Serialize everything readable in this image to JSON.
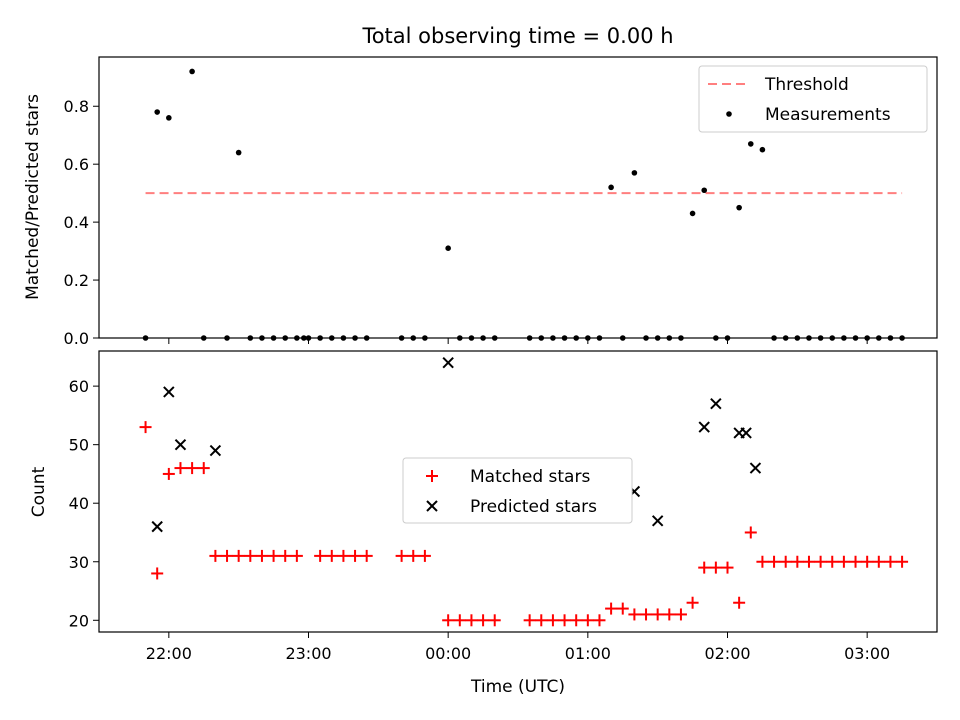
{
  "chart_data": [
    {
      "type": "scatter",
      "title": "Total observing time = 0.00 h",
      "ylabel": "Matched/Predicted stars",
      "ylim": [
        0,
        0.97
      ],
      "yticks": [
        "0.0",
        "0.2",
        "0.4",
        "0.6",
        "0.8"
      ],
      "threshold": {
        "name": "Threshold",
        "y": 0.5,
        "x_range": [
          "21:50",
          "03:15"
        ],
        "color": "#ff7f7f"
      },
      "legend_placement": "upper right",
      "series": [
        {
          "name": "Measurements",
          "color": "#000000",
          "x": [
            "21:50",
            "21:55",
            "22:00",
            "22:10",
            "22:15",
            "22:25",
            "22:30",
            "22:35",
            "22:40",
            "22:45",
            "22:50",
            "22:55",
            "22:58",
            "23:00",
            "23:05",
            "23:10",
            "23:15",
            "23:20",
            "23:25",
            "23:40",
            "23:45",
            "23:50",
            "00:00",
            "00:05",
            "00:10",
            "00:15",
            "00:20",
            "00:35",
            "00:40",
            "00:45",
            "00:50",
            "00:55",
            "01:00",
            "01:05",
            "01:10",
            "01:15",
            "01:20",
            "01:25",
            "01:30",
            "01:35",
            "01:40",
            "01:45",
            "01:50",
            "01:55",
            "02:00",
            "02:05",
            "02:10",
            "02:15",
            "02:20",
            "02:25",
            "02:30",
            "02:35",
            "02:40",
            "02:45",
            "02:50",
            "02:55",
            "03:00",
            "03:05",
            "03:10",
            "03:15"
          ],
          "y": [
            0.0,
            0.78,
            0.76,
            0.92,
            0.0,
            0.0,
            0.64,
            0.0,
            0.0,
            0.0,
            0.0,
            0.0,
            0.0,
            0.0,
            0.0,
            0.0,
            0.0,
            0.0,
            0.0,
            0.0,
            0.0,
            0.0,
            0.31,
            0.0,
            0.0,
            0.0,
            0.0,
            0.0,
            0.0,
            0.0,
            0.0,
            0.0,
            0.0,
            0.0,
            0.52,
            0.0,
            0.57,
            0.0,
            0.0,
            0.0,
            0.0,
            0.43,
            0.51,
            0.0,
            0.0,
            0.45,
            0.67,
            0.65,
            0.0,
            0.0,
            0.0,
            0.0,
            0.0,
            0.0,
            0.0,
            0.0,
            0.0,
            0.0,
            0.0,
            0.0
          ]
        }
      ]
    },
    {
      "type": "scatter",
      "ylabel": "Count",
      "xlabel": "Time (UTC)",
      "ylim": [
        18,
        66
      ],
      "yticks": [
        "20",
        "30",
        "40",
        "50",
        "60"
      ],
      "xticks": [
        "22:00",
        "23:00",
        "00:00",
        "01:00",
        "02:00",
        "03:00"
      ],
      "legend_placement": "center",
      "series": [
        {
          "name": "Matched stars",
          "color": "#ff0000",
          "marker": "plus",
          "x": [
            "21:50",
            "21:55",
            "22:00",
            "22:05",
            "22:10",
            "22:15",
            "22:20",
            "22:25",
            "22:30",
            "22:35",
            "22:40",
            "22:45",
            "22:50",
            "22:55",
            "23:05",
            "23:10",
            "23:15",
            "23:20",
            "23:25",
            "23:40",
            "23:45",
            "23:50",
            "00:00",
            "00:05",
            "00:10",
            "00:15",
            "00:20",
            "00:35",
            "00:40",
            "00:45",
            "00:50",
            "00:55",
            "01:00",
            "01:05",
            "01:10",
            "01:15",
            "01:20",
            "01:25",
            "01:30",
            "01:35",
            "01:40",
            "01:45",
            "01:50",
            "01:55",
            "02:00",
            "02:05",
            "02:10",
            "02:15",
            "02:20",
            "02:25",
            "02:30",
            "02:35",
            "02:40",
            "02:45",
            "02:50",
            "02:55",
            "03:00",
            "03:05",
            "03:10",
            "03:15"
          ],
          "y": [
            53,
            28,
            45,
            46,
            46,
            46,
            31,
            31,
            31,
            31,
            31,
            31,
            31,
            31,
            31,
            31,
            31,
            31,
            31,
            31,
            31,
            31,
            20,
            20,
            20,
            20,
            20,
            20,
            20,
            20,
            20,
            20,
            20,
            20,
            22,
            22,
            21,
            21,
            21,
            21,
            21,
            23,
            29,
            29,
            29,
            23,
            35,
            30,
            30,
            30,
            30,
            30,
            30,
            30,
            30,
            30,
            30,
            30,
            30,
            30
          ]
        },
        {
          "name": "Predicted stars",
          "color": "#000000",
          "marker": "x",
          "x": [
            "21:55",
            "22:00",
            "22:05",
            "22:20",
            "00:00",
            "01:20",
            "01:30",
            "01:50",
            "01:55",
            "02:05",
            "02:08",
            "02:12"
          ],
          "y": [
            36,
            59,
            50,
            49,
            64,
            42,
            37,
            53,
            57,
            52,
            52,
            46
          ]
        }
      ]
    }
  ]
}
